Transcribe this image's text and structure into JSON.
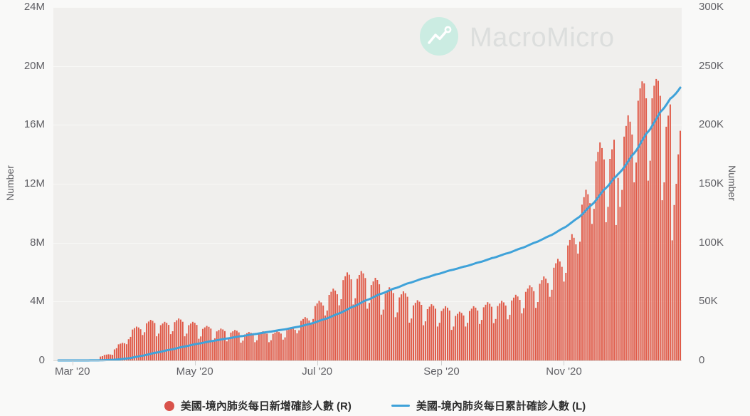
{
  "watermark": {
    "brand": "MacroMicro",
    "logo": "line-chart-icon",
    "logo_color": "#cbece2"
  },
  "theme": {
    "outer_background": "#f9f9f8",
    "plot_background": "#f0efed",
    "gridline_color": "#f8f8f6",
    "axis_line_color": "#d6d6d4",
    "tick_color": "#cfcfce",
    "bar_color": "#e05b49",
    "line_color": "#3fa2d9",
    "legend_dot_color": "#d9534b",
    "label_color": "#606065"
  },
  "legend": [
    {
      "label": "美國-境內肺炎每日新增確診人數 (R)",
      "marker": "circle",
      "color": "#d9534b"
    },
    {
      "label": "美國-境內肺炎每日累計確診人數 (L)",
      "marker": "line",
      "color": "#3fa2d9"
    }
  ],
  "chart_data": {
    "type": "bar",
    "title": "",
    "x_start_date": "2020-02-23",
    "x_end_date": "2020-12-29",
    "frequency": "daily",
    "grid": "horizontal-only",
    "legend_position": "bottom-center",
    "x_ticks": [
      {
        "label": "Mar '20",
        "day_index": 7
      },
      {
        "label": "May '20",
        "day_index": 68
      },
      {
        "label": "Jul '20",
        "day_index": 129
      },
      {
        "label": "Sep '20",
        "day_index": 191
      },
      {
        "label": "Nov '20",
        "day_index": 252
      }
    ],
    "left_axis": {
      "title": "Number",
      "min": 0,
      "max": 24000000,
      "ticks": [
        {
          "label": "0",
          "value": 0
        },
        {
          "label": "4M",
          "value": 4000000
        },
        {
          "label": "8M",
          "value": 8000000
        },
        {
          "label": "12M",
          "value": 12000000
        },
        {
          "label": "16M",
          "value": 16000000
        },
        {
          "label": "20M",
          "value": 20000000
        },
        {
          "label": "24M",
          "value": 24000000
        }
      ]
    },
    "right_axis": {
      "title": "Number",
      "min": 0,
      "max": 300000,
      "ticks": [
        {
          "label": "0",
          "value": 0
        },
        {
          "label": "50K",
          "value": 50000
        },
        {
          "label": "100K",
          "value": 100000
        },
        {
          "label": "150K",
          "value": 150000
        },
        {
          "label": "200K",
          "value": 200000
        },
        {
          "label": "250K",
          "value": 250000
        },
        {
          "label": "300K",
          "value": 300000
        }
      ]
    },
    "series": [
      {
        "name": "美國-境內肺炎每日新增確診人數",
        "axis": "right",
        "render": "bar",
        "color": "#e05b49",
        "values": [
          22,
          24,
          32,
          33,
          35,
          34,
          32,
          86,
          96,
          126,
          132,
          138,
          134,
          127,
          504,
          560,
          735,
          770,
          805,
          784,
          742,
          3240,
          3600,
          4725,
          4950,
          5175,
          5040,
          4770,
          9360,
          10400,
          13650,
          14300,
          14950,
          14560,
          13780,
          18000,
          20000,
          26250,
          27500,
          28750,
          28000,
          26500,
          21600,
          24000,
          31500,
          33000,
          34500,
          33600,
          31800,
          20520,
          22800,
          29925,
          31350,
          32775,
          31920,
          30210,
          22320,
          24800,
          32550,
          34100,
          35650,
          34720,
          32860,
          20520,
          22800,
          29925,
          31350,
          32775,
          31920,
          30210,
          18360,
          20400,
          26775,
          28050,
          29325,
          28560,
          27030,
          16920,
          18800,
          24675,
          25850,
          27025,
          26320,
          24910,
          16200,
          18000,
          23625,
          24750,
          25875,
          25200,
          23850,
          15120,
          16800,
          22050,
          23100,
          24150,
          23520,
          22260,
          15480,
          17200,
          22575,
          23650,
          24725,
          24080,
          22790,
          15480,
          17200,
          22575,
          23650,
          24725,
          24080,
          22790,
          17640,
          19600,
          25725,
          26950,
          28175,
          27440,
          25970,
          23040,
          25600,
          33600,
          35200,
          36800,
          35840,
          33920,
          31680,
          35200,
          46200,
          48400,
          50600,
          49280,
          46640,
          38160,
          42400,
          55650,
          58300,
          60950,
          59360,
          56180,
          46800,
          52000,
          68250,
          71500,
          74750,
          72800,
          68900,
          47520,
          52800,
          69300,
          72600,
          75900,
          73920,
          69960,
          43920,
          48800,
          64050,
          67100,
          70150,
          68320,
          64660,
          38880,
          43200,
          56700,
          59400,
          62100,
          60480,
          57240,
          36720,
          40800,
          53550,
          56100,
          58650,
          57120,
          54060,
          32040,
          35600,
          46725,
          48950,
          51175,
          49840,
          47170,
          29880,
          33200,
          43575,
          45650,
          47725,
          46480,
          43990,
          28800,
          32000,
          42000,
          44000,
          46000,
          44800,
          42400,
          25920,
          28800,
          37800,
          39600,
          41400,
          40320,
          38160,
          28800,
          32000,
          42000,
          44000,
          46000,
          44800,
          42400,
          30960,
          34400,
          45150,
          47300,
          49450,
          48160,
          45580,
          31680,
          35200,
          46200,
          48400,
          50600,
          49280,
          46640,
          34920,
          38800,
          50925,
          53350,
          55775,
          54320,
          51410,
          39960,
          44400,
          58275,
          61050,
          63825,
          62160,
          58830,
          44640,
          49600,
          65100,
          68200,
          71300,
          69440,
          65720,
          54000,
          60000,
          78750,
          82500,
          86250,
          84000,
          79500,
          66960,
          74400,
          97650,
          102300,
          107250,
          104160,
          98580,
          90720,
          100800,
          132300,
          138600,
          144900,
          141120,
          133560,
          115920,
          128800,
          169050,
          177100,
          185150,
          180320,
          170660,
          117360,
          130400,
          171150,
          179300,
          187450,
          115000,
          155000,
          130320,
          144800,
          190050,
          199100,
          208150,
          202720,
          191860,
          151200,
          168000,
          220500,
          231000,
          237000,
          235200,
          222600,
          152640,
          169600,
          222600,
          233200,
          239000,
          237440,
          224720,
          136000,
          151200,
          198450,
          207900,
          217350,
          102000,
          132000,
          150000,
          175000,
          195000
        ]
      },
      {
        "name": "美國-境內肺炎每日累計確診人數",
        "axis": "left",
        "render": "line",
        "color": "#3fa2d9",
        "derivation": "cumulative_sum_of_daily_series",
        "end_value_approx": 18500000
      }
    ]
  }
}
